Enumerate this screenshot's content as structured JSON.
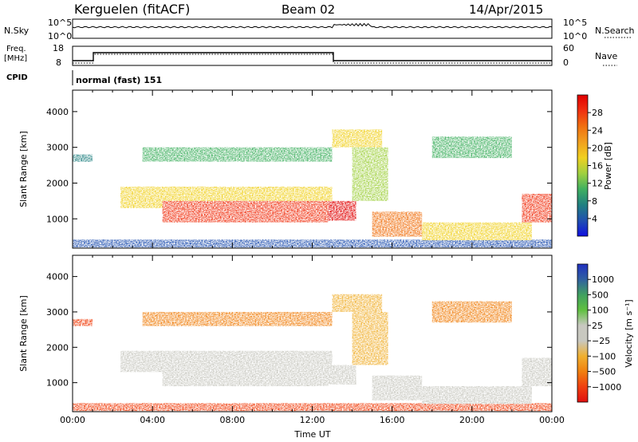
{
  "header": {
    "station": "Kerguelen (fitACF)",
    "beam": "Beam 02",
    "date": "14/Apr/2015"
  },
  "params": {
    "nsky_label": "N.Sky",
    "nsky_ticks": [
      "10^5",
      "10^0"
    ],
    "nsearch_label": "N.Search",
    "nsearch_ticks": [
      "10^5",
      "10^0"
    ],
    "freq_label": "Freq.",
    "freq_unit": "[MHz]",
    "freq_ticks": [
      "18",
      "8"
    ],
    "nave_label": "Nave",
    "nave_ticks": [
      "60",
      "0"
    ],
    "cpid_label": "CPID",
    "cpid_value": "normal (fast) 151"
  },
  "colors": {
    "power_scale": [
      "#1010e0",
      "#2050b0",
      "#208080",
      "#40b060",
      "#a0d040",
      "#f0d020",
      "#f0a020",
      "#f07010",
      "#f03010",
      "#e00000"
    ],
    "velocity_scale": [
      "#e01010",
      "#f04010",
      "#f08010",
      "#f0b030",
      "#c8c8c0",
      "#c8c8c0",
      "#60c040",
      "#40a060",
      "#3060a0",
      "#2030c0"
    ]
  },
  "chart_data": [
    {
      "type": "heatmap",
      "title": "",
      "xlabel": "",
      "ylabel": "Slant Range [km]",
      "xlim": [
        "00:00",
        "24:00"
      ],
      "ylim": [
        180,
        4600
      ],
      "yticks": [
        "1000",
        "2000",
        "3000",
        "4000"
      ],
      "colorbar_label": "Power [dB]",
      "colorbar_ticks": [
        "4",
        "8",
        "12",
        "16",
        "20",
        "24",
        "28"
      ],
      "colorbar_range": [
        0,
        32
      ]
    },
    {
      "type": "heatmap",
      "title": "",
      "xlabel": "Time UT",
      "ylabel": "Slant Range [km]",
      "xlim": [
        "00:00",
        "24:00"
      ],
      "xticks": [
        "00:00",
        "04:00",
        "08:00",
        "12:00",
        "16:00",
        "20:00",
        "00:00"
      ],
      "ylim": [
        180,
        4600
      ],
      "yticks": [
        "1000",
        "2000",
        "3000",
        "4000"
      ],
      "colorbar_label": "Velocity [m s⁻¹]",
      "colorbar_ticks": [
        "1000",
        "500",
        "100",
        "25",
        "−25",
        "−100",
        "−500",
        "−1000"
      ]
    }
  ]
}
